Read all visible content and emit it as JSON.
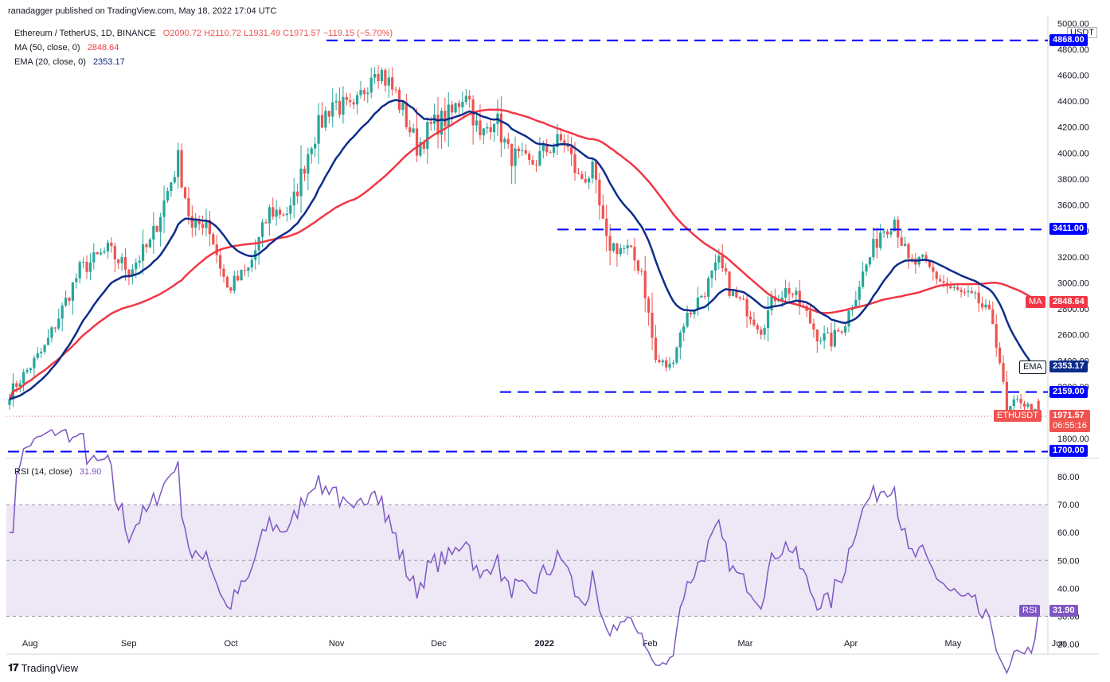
{
  "publisher": "ranadagger published on TradingView.com, May 18, 2022 17:04 UTC",
  "legend": {
    "symbol": "Ethereum / TetherUS, 1D, BINANCE",
    "ohlc": {
      "o": "O2090.72",
      "h": "H2110.72",
      "l": "L1931.49",
      "c": "C1971.57",
      "chg": "−119.15 (−5.70%)"
    },
    "ma": {
      "label": "MA (50, close, 0)",
      "value": "2848.64"
    },
    "ema": {
      "label": "EMA (20, close, 0)",
      "value": "2353.17"
    },
    "rsi": {
      "label": "RSI (14, close)",
      "value": "31.90"
    }
  },
  "axis_unit": "USDT",
  "logo": "TradingView",
  "colors": {
    "up": "#26a69a",
    "down": "#ef5350",
    "ma": "#f23645",
    "ema": "#0d2c8a",
    "levels": "#0000ff",
    "rsi": "#7e57c2",
    "rsi_band": "#ede7f6"
  },
  "price_labels": [
    {
      "id": "4868",
      "text": "4868.00",
      "style": "level"
    },
    {
      "id": "3411",
      "text": "3411.00",
      "style": "level"
    },
    {
      "id": "ma",
      "text": "2848.64",
      "tag": "MA",
      "style": "ma"
    },
    {
      "id": "ema",
      "text": "2353.17",
      "tag": "EMA",
      "style": "ema"
    },
    {
      "id": "2159",
      "text": "2159.00",
      "style": "level"
    },
    {
      "id": "last",
      "text": "1971.57",
      "text2": "06:55:16",
      "tag": "ETHUSDT",
      "style": "last"
    },
    {
      "id": "1700",
      "text": "1700.00",
      "style": "level"
    },
    {
      "id": "rsi",
      "text": "31.90",
      "tag": "RSI",
      "style": "rsi"
    }
  ],
  "chart_data": {
    "type": "candlestick",
    "symbol": "ETHUSDT",
    "price_axis": {
      "ticks": [
        1800,
        2000,
        2200,
        2400,
        2600,
        2800,
        3000,
        3200,
        3400,
        3600,
        3800,
        4000,
        4200,
        4400,
        4600,
        4800,
        5000
      ],
      "tick_labels": [
        "1800.00",
        "2000.00",
        "2200.00",
        "2400.00",
        "2600.00",
        "2800.00",
        "3000.00",
        "3200.00",
        "3400.00",
        "3600.00",
        "3800.00",
        "4000.00",
        "4200.00",
        "4400.00",
        "4600.00",
        "4800.00",
        "5000.00"
      ],
      "ylim": [
        1660,
        5020
      ]
    },
    "time_axis": {
      "labels": [
        "Aug",
        "Sep",
        "Oct",
        "Nov",
        "Dec",
        "2022",
        "Feb",
        "Mar",
        "Apr",
        "May",
        "Jun"
      ]
    },
    "horizontal_levels": [
      4868,
      3411,
      2159,
      1700
    ],
    "anchors": [
      {
        "x": 0,
        "y": 2150
      },
      {
        "x": 10,
        "y": 2500
      },
      {
        "x": 20,
        "y": 3100
      },
      {
        "x": 28,
        "y": 3250
      },
      {
        "x": 34,
        "y": 3100
      },
      {
        "x": 40,
        "y": 3300
      },
      {
        "x": 48,
        "y": 3950
      },
      {
        "x": 52,
        "y": 3400
      },
      {
        "x": 56,
        "y": 3500
      },
      {
        "x": 62,
        "y": 2950
      },
      {
        "x": 68,
        "y": 3100
      },
      {
        "x": 74,
        "y": 3550
      },
      {
        "x": 80,
        "y": 3550
      },
      {
        "x": 86,
        "y": 4100
      },
      {
        "x": 92,
        "y": 4400
      },
      {
        "x": 98,
        "y": 4300
      },
      {
        "x": 104,
        "y": 4700
      },
      {
        "x": 110,
        "y": 4450
      },
      {
        "x": 116,
        "y": 4050
      },
      {
        "x": 120,
        "y": 4200
      },
      {
        "x": 126,
        "y": 4300
      },
      {
        "x": 130,
        "y": 4500
      },
      {
        "x": 134,
        "y": 4100
      },
      {
        "x": 138,
        "y": 4300
      },
      {
        "x": 142,
        "y": 4000
      },
      {
        "x": 148,
        "y": 3900
      },
      {
        "x": 154,
        "y": 4050
      },
      {
        "x": 158,
        "y": 4100
      },
      {
        "x": 162,
        "y": 3800
      },
      {
        "x": 166,
        "y": 3850
      },
      {
        "x": 170,
        "y": 3300
      },
      {
        "x": 176,
        "y": 3250
      },
      {
        "x": 180,
        "y": 3100
      },
      {
        "x": 184,
        "y": 2400
      },
      {
        "x": 188,
        "y": 2350
      },
      {
        "x": 192,
        "y": 2700
      },
      {
        "x": 198,
        "y": 2950
      },
      {
        "x": 202,
        "y": 3150
      },
      {
        "x": 206,
        "y": 2900
      },
      {
        "x": 210,
        "y": 2800
      },
      {
        "x": 214,
        "y": 2650
      },
      {
        "x": 218,
        "y": 2900
      },
      {
        "x": 222,
        "y": 2950
      },
      {
        "x": 226,
        "y": 2800
      },
      {
        "x": 230,
        "y": 2600
      },
      {
        "x": 234,
        "y": 2550
      },
      {
        "x": 238,
        "y": 2700
      },
      {
        "x": 242,
        "y": 3000
      },
      {
        "x": 248,
        "y": 3400
      },
      {
        "x": 252,
        "y": 3500
      },
      {
        "x": 256,
        "y": 3150
      },
      {
        "x": 260,
        "y": 3150
      },
      {
        "x": 264,
        "y": 3050
      },
      {
        "x": 268,
        "y": 2950
      },
      {
        "x": 272,
        "y": 2900
      },
      {
        "x": 276,
        "y": 2850
      },
      {
        "x": 280,
        "y": 2700
      },
      {
        "x": 282,
        "y": 2400
      },
      {
        "x": 284,
        "y": 2000
      },
      {
        "x": 286,
        "y": 2060
      },
      {
        "x": 288,
        "y": 2100
      },
      {
        "x": 290,
        "y": 2040
      },
      {
        "x": 292,
        "y": 1990
      },
      {
        "x": 293,
        "y": 1971.57
      }
    ],
    "last": {
      "o": 2090.72,
      "h": 2110.72,
      "l": 1931.49,
      "c": 1971.57
    },
    "ma50_last": 2848.64,
    "ema20_last": 2353.17,
    "rsi": {
      "ticks": [
        20,
        30,
        40,
        50,
        60,
        70,
        80
      ],
      "tick_labels": [
        "20.00",
        "30.00",
        "40.00",
        "50.00",
        "60.00",
        "70.00",
        "80.00"
      ],
      "ylim": [
        17,
        86
      ],
      "band": [
        30,
        70
      ],
      "last": 31.9
    }
  }
}
